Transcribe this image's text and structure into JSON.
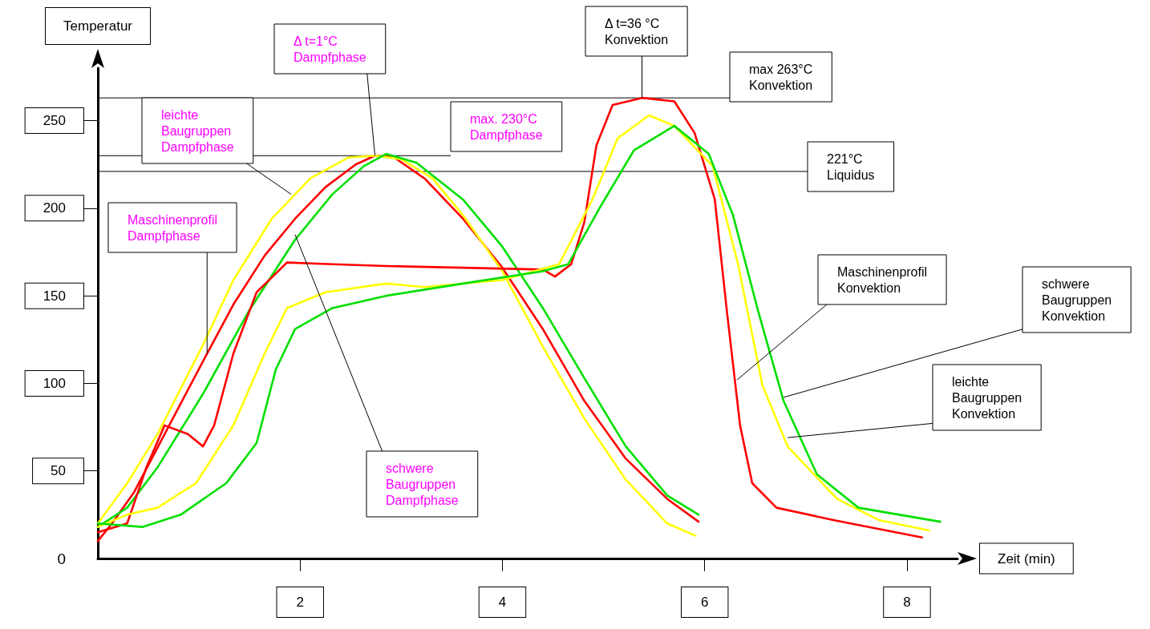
{
  "chart_data": {
    "type": "line",
    "xlabel": "Zeit (min)",
    "ylabel": "Temperatur",
    "xlim": [
      0,
      8.5
    ],
    "xticks": [
      2,
      4,
      6,
      8
    ],
    "ylim": [
      0,
      280
    ],
    "yticks": [
      0,
      50,
      100,
      150,
      200,
      250
    ],
    "grid": false,
    "marker": "none",
    "line_style": "solid",
    "series": [
      {
        "color": "#ff0000",
        "x": [
          0,
          0.14,
          0.36,
          0.66,
          1.08,
          1.34,
          1.65,
          1.95,
          2.25,
          2.55,
          2.74,
          2.93,
          3.23,
          3.61,
          4,
          4.4,
          4.81,
          5.22,
          5.63,
          5.94
        ],
        "values": [
          10,
          20,
          38,
          71,
          117,
          145,
          173,
          194,
          212,
          225,
          230,
          229,
          217,
          194,
          166,
          131,
          90,
          57,
          34,
          21
        ]
      },
      {
        "color": "#ffff00",
        "x": [
          0,
          0.29,
          0.59,
          1.04,
          1.34,
          1.72,
          2.1,
          2.48,
          2.74,
          3,
          3.31,
          3.61,
          4,
          4.4,
          4.81,
          5.22,
          5.63,
          5.91
        ],
        "values": [
          20,
          43,
          71,
          122,
          159,
          194,
          217,
          229,
          230,
          228,
          217,
          196,
          164,
          121,
          80,
          45,
          20,
          13
        ]
      },
      {
        "color": "#00e000",
        "x": [
          0,
          0.29,
          0.59,
          1.04,
          1.49,
          1.95,
          2.32,
          2.63,
          2.85,
          3.15,
          3.61,
          4,
          4.4,
          4.81,
          5.22,
          5.63,
          5.94
        ],
        "values": [
          18,
          29,
          52,
          94,
          141,
          182,
          208,
          224,
          231,
          226,
          205,
          178,
          143,
          103,
          64,
          36,
          25
        ]
      },
      {
        "color": "#ff0000",
        "x": [
          0,
          0.29,
          0.48,
          0.66,
          0.89,
          1.04,
          1.15,
          1.34,
          1.57,
          1.87,
          2.32,
          2.85,
          3.61,
          4.4,
          4.52,
          4.68,
          4.81,
          4.93,
          5.09,
          5.38,
          5.7,
          5.9,
          6.1,
          6.22,
          6.35,
          6.47,
          6.71,
          7.27,
          8.15
        ],
        "values": [
          15,
          20,
          52,
          76,
          71,
          64,
          76,
          117,
          152,
          169,
          168,
          167,
          166,
          165,
          161,
          168,
          192,
          236,
          259,
          263,
          261,
          243,
          205,
          141,
          76,
          43,
          29,
          22,
          12
        ]
      },
      {
        "color": "#ffff00",
        "x": [
          0,
          0.29,
          0.59,
          0.97,
          1.34,
          1.65,
          1.87,
          2.25,
          2.85,
          3.23,
          4,
          4.56,
          4.89,
          5.14,
          5.45,
          5.7,
          6.08,
          6.33,
          6.57,
          6.82,
          7.31,
          7.72,
          8.22
        ],
        "values": [
          18,
          25,
          29,
          43,
          76,
          117,
          143,
          152,
          157,
          155,
          159,
          168,
          205,
          240,
          253,
          247,
          224,
          168,
          99,
          64,
          34,
          22,
          16
        ]
      },
      {
        "color": "#00e000",
        "x": [
          0,
          0.44,
          0.82,
          1.27,
          1.57,
          1.76,
          1.95,
          2.32,
          2.85,
          3.61,
          4.4,
          4.65,
          4.97,
          5.3,
          5.7,
          6.04,
          6.28,
          6.53,
          6.78,
          7.11,
          7.52,
          8.33
        ],
        "values": [
          20,
          18,
          25,
          43,
          66,
          108,
          131,
          143,
          150,
          157,
          164,
          168,
          201,
          233,
          247,
          231,
          196,
          141,
          90,
          48,
          29,
          21
        ]
      }
    ],
    "ref_lines": [
      {
        "axis": "y",
        "value": 263,
        "label": "max 263°C\nKonvektion"
      },
      {
        "axis": "y",
        "value": 230,
        "label": "max. 230°C\nDampfphase"
      },
      {
        "axis": "y",
        "value": 221,
        "label": "221°C\nLiquidus"
      }
    ],
    "annotations": [
      {
        "text": "leichte\nBaugruppen\nDampfphase",
        "x": 1.91,
        "y": 208
      },
      {
        "text": "Maschinenprofil\nDampfphase",
        "x": 1.08,
        "y": 117
      },
      {
        "text": "schwere\nBaugruppen\nDampfphase",
        "x": 1.95,
        "y": 185
      },
      {
        "text": "Δ t=1°C\nDampfphase",
        "x": 2.74,
        "y": 230
      },
      {
        "text": "Δ t=36 °C\nKonvektion",
        "x": 5.38,
        "y": 263
      },
      {
        "text": "Maschinenprofil\nKonvektion",
        "x": 6.32,
        "y": 102
      },
      {
        "text": "schwere\nBaugruppen\nKonvektion",
        "x": 6.78,
        "y": 92
      },
      {
        "text": "leichte\nBaugruppen\nKonvektion",
        "x": 6.82,
        "y": 69
      }
    ]
  }
}
